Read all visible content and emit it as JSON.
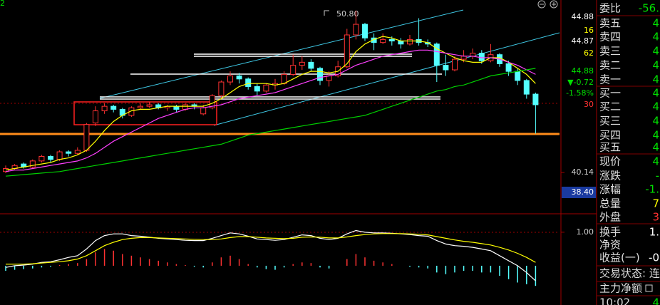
{
  "chart_data": {
    "type": "candlestick",
    "corner_text": "2",
    "high_label": "50.80",
    "up_color": "#ff3232",
    "down_color": "#54ffff",
    "open": [
      40.2,
      40.4,
      40.7,
      40.5,
      40.9,
      41.2,
      41.0,
      41.5,
      41.4,
      41.6,
      43.4,
      44.2,
      44.5,
      44.3,
      43.9,
      44.4,
      44.5,
      44.6,
      44.4,
      44.5,
      44.3,
      44.6,
      44.0,
      44.4,
      45.2,
      46.1,
      46.5,
      46.3,
      45.8,
      45.5,
      45.9,
      46.0,
      46.6,
      47.2,
      47.4,
      47.0,
      46.2,
      46.5,
      47.1,
      49.2,
      49.9,
      49.0,
      48.7,
      48.9,
      48.8,
      48.6,
      48.9,
      48.7,
      48.6,
      47.2,
      46.9,
      47.6,
      47.8,
      48.0,
      47.5,
      47.9,
      47.3,
      46.8,
      46.2,
      45.3
    ],
    "high": [
      40.6,
      40.7,
      40.8,
      41.0,
      41.3,
      41.3,
      41.6,
      41.6,
      41.8,
      43.4,
      44.5,
      44.7,
      44.6,
      44.4,
      44.5,
      44.7,
      44.8,
      44.7,
      44.6,
      44.6,
      44.7,
      44.7,
      44.6,
      45.3,
      46.2,
      46.8,
      46.7,
      46.4,
      46.0,
      46.0,
      46.3,
      46.8,
      47.9,
      47.8,
      47.6,
      47.1,
      46.8,
      47.5,
      49.6,
      50.8,
      50.0,
      49.3,
      49.3,
      49.1,
      49.0,
      49.2,
      50.3,
      48.9,
      48.7,
      47.9,
      47.8,
      48.2,
      48.3,
      48.2,
      48.6,
      48.0,
      47.5,
      47.0,
      46.3,
      45.4
    ],
    "low": [
      40.1,
      40.3,
      40.4,
      40.4,
      40.8,
      40.8,
      40.9,
      41.2,
      41.3,
      41.5,
      43.2,
      44.0,
      44.1,
      43.7,
      43.8,
      44.3,
      44.4,
      44.3,
      44.2,
      44.1,
      44.2,
      44.3,
      43.9,
      44.3,
      45.0,
      45.9,
      46.0,
      45.6,
      45.2,
      45.4,
      45.6,
      45.9,
      46.5,
      46.9,
      46.8,
      45.9,
      45.8,
      46.4,
      47.0,
      48.9,
      48.8,
      48.2,
      48.6,
      48.5,
      48.3,
      48.5,
      48.5,
      48.4,
      46.1,
      46.5,
      46.8,
      47.4,
      47.6,
      47.3,
      47.4,
      47.1,
      46.5,
      45.9,
      45.0,
      42.7
    ],
    "close": [
      40.4,
      40.6,
      40.5,
      40.9,
      41.2,
      41.0,
      41.5,
      41.4,
      41.6,
      43.3,
      44.2,
      44.5,
      44.3,
      43.9,
      44.4,
      44.5,
      44.6,
      44.4,
      44.5,
      44.3,
      44.6,
      44.5,
      44.4,
      45.2,
      46.1,
      46.5,
      46.3,
      45.8,
      45.5,
      45.9,
      46.0,
      46.6,
      47.2,
      47.4,
      47.0,
      46.2,
      46.5,
      47.1,
      49.2,
      49.9,
      49.0,
      48.7,
      48.9,
      48.8,
      48.6,
      48.9,
      48.7,
      48.6,
      47.2,
      46.9,
      47.6,
      47.8,
      48.0,
      47.5,
      47.9,
      47.3,
      46.8,
      46.2,
      45.3,
      44.6
    ],
    "series": [
      {
        "color": "#ffff00",
        "values": [
          40.3,
          40.4,
          40.5,
          40.6,
          40.7,
          40.8,
          41.0,
          41.1,
          41.3,
          41.6,
          42.2,
          42.9,
          43.5,
          43.9,
          44.2,
          44.3,
          44.3,
          44.4,
          44.5,
          44.5,
          44.5,
          44.5,
          44.5,
          44.7,
          45.0,
          45.4,
          45.8,
          46.0,
          46.0,
          46.0,
          45.9,
          46.0,
          46.3,
          46.6,
          46.8,
          46.8,
          46.7,
          46.8,
          47.3,
          48.1,
          48.6,
          48.9,
          49.1,
          49.0,
          48.8,
          48.8,
          48.8,
          48.7,
          48.3,
          48.0,
          47.7,
          47.5,
          47.4,
          47.4,
          47.7,
          47.7,
          47.4,
          47.0,
          46.6,
          46.0
        ]
      },
      {
        "color": "#ff40ff",
        "values": [
          40.2,
          40.3,
          40.3,
          40.4,
          40.5,
          40.6,
          40.7,
          40.8,
          40.9,
          41.1,
          41.4,
          41.8,
          42.2,
          42.5,
          42.8,
          43.1,
          43.4,
          43.7,
          43.9,
          44.1,
          44.3,
          44.4,
          44.4,
          44.5,
          44.6,
          44.8,
          45.0,
          45.1,
          45.2,
          45.3,
          45.4,
          45.6,
          45.8,
          46.0,
          46.2,
          46.4,
          46.5,
          46.6,
          46.9,
          47.2,
          47.4,
          47.6,
          47.8,
          47.9,
          48.0,
          48.1,
          48.2,
          48.2,
          48.1,
          48.0,
          47.9,
          47.8,
          47.8,
          47.7,
          47.7,
          47.6,
          47.4,
          47.2,
          46.9,
          46.6
        ]
      },
      {
        "color": "#00d000",
        "values": [
          39.9,
          39.95,
          40.0,
          40.05,
          40.1,
          40.15,
          40.2,
          40.3,
          40.4,
          40.5,
          40.6,
          40.7,
          40.8,
          40.9,
          41.0,
          41.1,
          41.2,
          41.3,
          41.4,
          41.5,
          41.6,
          41.7,
          41.8,
          41.9,
          42.0,
          42.2,
          42.4,
          42.6,
          42.7,
          42.8,
          42.9,
          43.0,
          43.1,
          43.2,
          43.3,
          43.4,
          43.5,
          43.6,
          43.7,
          43.8,
          43.9,
          44.1,
          44.3,
          44.5,
          44.7,
          44.9,
          45.1,
          45.3,
          45.5,
          45.6,
          45.8,
          45.9,
          46.1,
          46.3,
          46.5,
          46.6,
          46.7,
          46.8,
          46.9,
          47.0
        ]
      }
    ],
    "ylim": [
      37.42,
      51.5
    ],
    "yticks": [
      40.14
    ],
    "side_labels": [
      {
        "text": "44.88",
        "color": "#ffffff"
      },
      {
        "text": "16",
        "color": "#ffff00"
      },
      {
        "text": "44.87",
        "color": "#ffffff"
      },
      {
        "text": "62",
        "color": "#ffff00"
      },
      {
        "text": "44.88",
        "color": "#00e000"
      },
      {
        "text": "▼-0.72",
        "color": "#00e000"
      },
      {
        "text": "-1.58%",
        "color": "#00e000"
      },
      {
        "text": "30",
        "color": "#ff3232"
      },
      {
        "text": "38.40",
        "color": "#ffffff"
      }
    ],
    "macd": {
      "hist": [
        -0.15,
        -0.12,
        -0.1,
        -0.08,
        -0.05,
        -0.03,
        0.02,
        0.05,
        0.08,
        0.2,
        0.4,
        0.5,
        0.45,
        0.35,
        0.3,
        0.25,
        0.2,
        0.15,
        0.1,
        0.05,
        0.02,
        -0.03,
        -0.05,
        0.1,
        0.25,
        0.3,
        0.2,
        0.05,
        -0.05,
        -0.1,
        -0.12,
        -0.05,
        0.05,
        0.1,
        0.08,
        -0.05,
        -0.08,
        0.0,
        0.2,
        0.35,
        0.25,
        0.15,
        0.1,
        0.05,
        0.0,
        -0.03,
        -0.05,
        -0.08,
        -0.2,
        -0.25,
        -0.2,
        -0.15,
        -0.15,
        -0.2,
        -0.2,
        -0.3,
        -0.4,
        -0.5,
        -0.55,
        -0.6
      ],
      "dif": [
        -0.05,
        0.0,
        0.02,
        0.05,
        0.1,
        0.12,
        0.18,
        0.25,
        0.3,
        0.5,
        0.75,
        0.9,
        0.95,
        0.95,
        0.9,
        0.88,
        0.85,
        0.82,
        0.8,
        0.78,
        0.76,
        0.75,
        0.75,
        0.82,
        0.9,
        0.98,
        0.95,
        0.88,
        0.8,
        0.78,
        0.76,
        0.78,
        0.85,
        0.92,
        0.9,
        0.82,
        0.78,
        0.82,
        0.95,
        1.05,
        1.0,
        0.98,
        0.98,
        0.97,
        0.95,
        0.93,
        0.9,
        0.88,
        0.75,
        0.65,
        0.6,
        0.58,
        0.55,
        0.5,
        0.45,
        0.3,
        0.15,
        0.0,
        -0.2,
        -0.45
      ],
      "dea": [
        0.05,
        0.05,
        0.05,
        0.06,
        0.08,
        0.1,
        0.12,
        0.15,
        0.2,
        0.3,
        0.45,
        0.6,
        0.7,
        0.78,
        0.82,
        0.84,
        0.84,
        0.83,
        0.82,
        0.81,
        0.8,
        0.79,
        0.78,
        0.78,
        0.8,
        0.84,
        0.87,
        0.87,
        0.85,
        0.83,
        0.82,
        0.81,
        0.82,
        0.85,
        0.86,
        0.85,
        0.83,
        0.83,
        0.86,
        0.9,
        0.93,
        0.95,
        0.96,
        0.96,
        0.96,
        0.95,
        0.94,
        0.92,
        0.87,
        0.82,
        0.77,
        0.73,
        0.7,
        0.66,
        0.62,
        0.55,
        0.47,
        0.37,
        0.25,
        0.1
      ],
      "dif_color": "#ffffff",
      "dea_color": "#ffff00",
      "ylim": [
        -1.17,
        1.55
      ],
      "yticks": [
        {
          "value": 1,
          "label": "1.00"
        }
      ]
    }
  },
  "quote_panel": {
    "rows": [
      {
        "label": "委比",
        "value": "-56.",
        "color": "#00e000"
      },
      {
        "label": "卖五",
        "value": "4",
        "color": "#00e000"
      },
      {
        "label": "卖四",
        "value": "4",
        "color": "#00e000"
      },
      {
        "label": "卖三",
        "value": "4",
        "color": "#00e000"
      },
      {
        "label": "卖二",
        "value": "4",
        "color": "#00e000"
      },
      {
        "label": "卖一",
        "value": "4",
        "color": "#00e000"
      },
      {
        "label": "买一",
        "value": "4",
        "color": "#00e000"
      },
      {
        "label": "买二",
        "value": "4",
        "color": "#00e000"
      },
      {
        "label": "买三",
        "value": "4",
        "color": "#00e000"
      },
      {
        "label": "买四",
        "value": "4",
        "color": "#00e000"
      },
      {
        "label": "买五",
        "value": "4",
        "color": "#00e000"
      },
      {
        "label": "现价",
        "value": "4",
        "color": "#00e000"
      },
      {
        "label": "涨跌",
        "value": "-",
        "color": "#00e000"
      },
      {
        "label": "涨幅",
        "value": "-1.",
        "color": "#00e000"
      },
      {
        "label": "总量",
        "value": "7",
        "color": "#ffff00"
      },
      {
        "label": "外盘",
        "value": "3",
        "color": "#ff3232"
      },
      {
        "label": "换手",
        "value": "1.",
        "color": "#ffffff"
      },
      {
        "label": "净资"
      },
      {
        "label": "收益(一)",
        "value": "-0",
        "color": "#ffffff"
      },
      {
        "label": "交易状态: 连"
      },
      {
        "label": "主力净额"
      },
      {
        "label": "10:02",
        "value": "4",
        "color": "#00e000"
      }
    ]
  }
}
